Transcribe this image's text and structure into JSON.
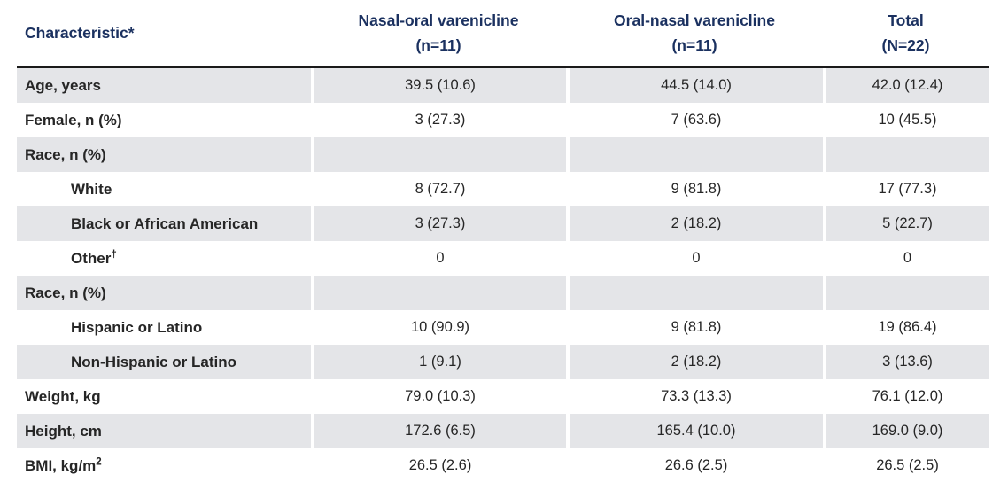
{
  "colors": {
    "header_text": "#1b3160",
    "body_text": "#262626",
    "row_shade": "#e4e5e8",
    "header_rule": "#1a1a1a",
    "background": "#ffffff"
  },
  "table": {
    "columns": [
      {
        "id": "characteristic",
        "label": "Characteristic*"
      },
      {
        "id": "nasal-oral-varenicline",
        "label": "Nasal-oral varenicline\n(n=11)"
      },
      {
        "id": "oral-nasal-varenicline",
        "label": "Oral-nasal varenicline\n(n=11)"
      },
      {
        "id": "total",
        "label": "Total\n(N=22)"
      }
    ],
    "rows": [
      {
        "label": "Age, years",
        "sup": "",
        "indent": false,
        "shaded": true,
        "values": [
          "39.5 (10.6)",
          "44.5 (14.0)",
          "42.0 (12.4)"
        ]
      },
      {
        "label": "Female, n (%)",
        "sup": "",
        "indent": false,
        "shaded": false,
        "values": [
          "3 (27.3)",
          "7 (63.6)",
          "10 (45.5)"
        ]
      },
      {
        "label": "Race, n (%)",
        "sup": "",
        "indent": false,
        "shaded": true,
        "values": [
          "",
          "",
          ""
        ]
      },
      {
        "label": "White",
        "sup": "",
        "indent": true,
        "shaded": false,
        "values": [
          "8 (72.7)",
          "9 (81.8)",
          "17 (77.3)"
        ]
      },
      {
        "label": "Black or African American",
        "sup": "",
        "indent": true,
        "shaded": true,
        "values": [
          "3 (27.3)",
          "2 (18.2)",
          "5 (22.7)"
        ]
      },
      {
        "label": "Other",
        "sup": "†",
        "indent": true,
        "shaded": false,
        "values": [
          "0",
          "0",
          "0"
        ]
      },
      {
        "label": "Race, n (%)",
        "sup": "",
        "indent": false,
        "shaded": true,
        "values": [
          "",
          "",
          ""
        ]
      },
      {
        "label": "Hispanic or Latino",
        "sup": "",
        "indent": true,
        "shaded": false,
        "values": [
          "10 (90.9)",
          "9 (81.8)",
          "19 (86.4)"
        ]
      },
      {
        "label": "Non-Hispanic or Latino",
        "sup": "",
        "indent": true,
        "shaded": true,
        "values": [
          "1 (9.1)",
          "2 (18.2)",
          "3 (13.6)"
        ]
      },
      {
        "label": "Weight, kg",
        "sup": "",
        "indent": false,
        "shaded": false,
        "values": [
          "79.0 (10.3)",
          "73.3 (13.3)",
          "76.1 (12.0)"
        ]
      },
      {
        "label": "Height, cm",
        "sup": "",
        "indent": false,
        "shaded": true,
        "values": [
          "172.6 (6.5)",
          "165.4 (10.0)",
          "169.0 (9.0)"
        ]
      },
      {
        "label": "BMI, kg/m",
        "sup": "2",
        "indent": false,
        "shaded": false,
        "values": [
          "26.5 (2.6)",
          "26.6 (2.5)",
          "26.5 (2.5)"
        ]
      }
    ]
  }
}
